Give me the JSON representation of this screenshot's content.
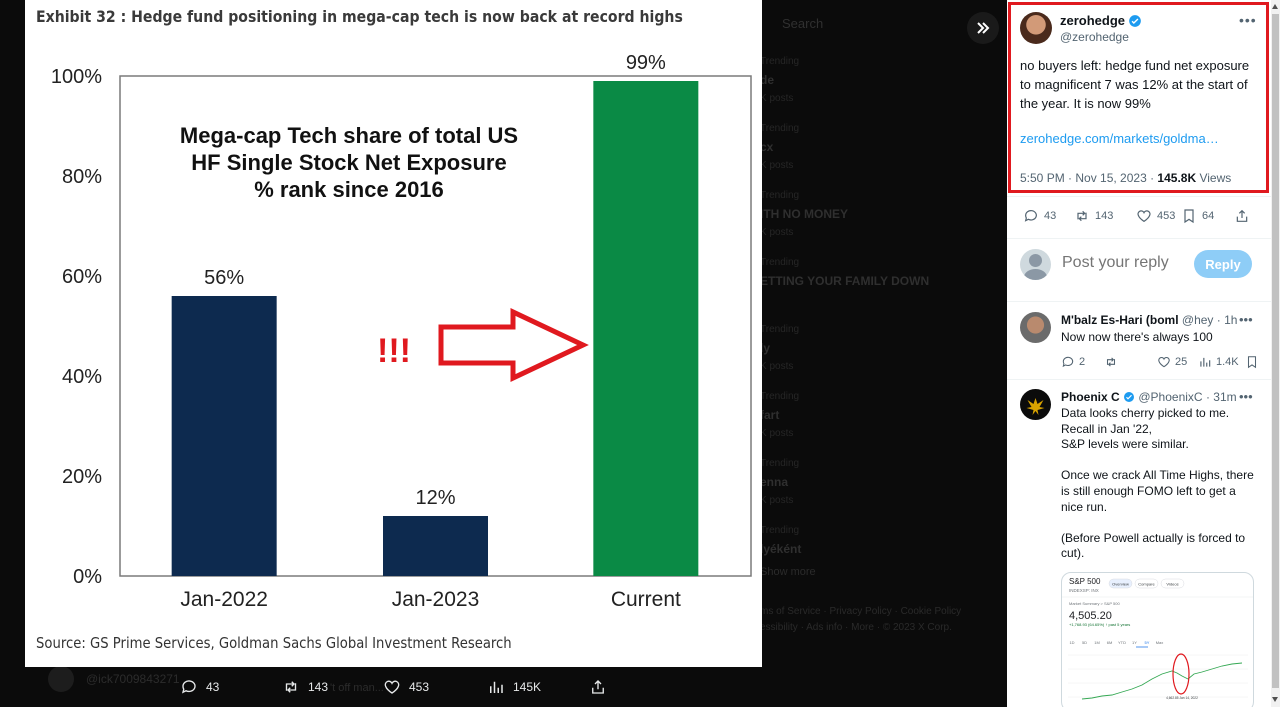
{
  "media": {
    "exhibit_title": "Exhibit 32 : Hedge fund positioning in mega-cap tech is now back at record highs",
    "source": "Source: GS Prime Services, Goldman Sachs Global Investment Research",
    "annotation": "!!!"
  },
  "chart_data": {
    "type": "bar",
    "title": "Mega-cap Tech share of total US\nHF Single Stock Net Exposure\n% rank since 2016",
    "title_lines": [
      "Mega-cap Tech share of total US",
      "HF Single Stock Net Exposure",
      "% rank since 2016"
    ],
    "categories": [
      "Jan-2022",
      "Jan-2023",
      "Current"
    ],
    "values": [
      56,
      12,
      99
    ],
    "value_labels": [
      "56%",
      "12%",
      "99%"
    ],
    "ylim": [
      0,
      100
    ],
    "yticks": [
      "0%",
      "20%",
      "40%",
      "60%",
      "80%",
      "100%"
    ],
    "colors": [
      "#0d2a4f",
      "#0d2a4f",
      "#0a8a45"
    ],
    "grid": false
  },
  "action_bar": {
    "replies": "43",
    "reposts": "143",
    "likes": "453",
    "views": "145K"
  },
  "tweet": {
    "author_name": "zerohedge",
    "author_handle": "@zerohedge",
    "text": "no buyers left: hedge fund net exposure to magnificent 7 was 12% at the start of the year. It is now 99%",
    "link": "zerohedge.com/markets/goldma…",
    "time": "5:50 PM · Nov 15, 2023",
    "separator": " · ",
    "views": "145.8K",
    "views_label": "Views",
    "replies": "43",
    "reposts": "143",
    "likes": "453",
    "bookmarks": "64"
  },
  "reply_box": {
    "placeholder": "Post your reply",
    "button": "Reply"
  },
  "replies": [
    {
      "name": "M'balz Es-Hari (boml",
      "handle": "@hey",
      "time": "· 1h",
      "text": "Now now there's always 100",
      "replies": "2",
      "likes": "25",
      "views": "1.4K"
    },
    {
      "name": "Phoenix C",
      "handle": "@PhoenixC",
      "time": "· 31m",
      "text": "Data looks cherry picked to me.\nRecall in Jan '22,\nS&P levels were similar.\n\nOnce we crack All Time Highs, there is still enough FOMO left to get a nice run.\n\n(Before Powell actually is forced to cut)."
    }
  ],
  "embed": {
    "title": "S&P 500",
    "subtitle": "INDEXSP: INX",
    "tabs": [
      "Overview",
      "Compare",
      "Videos"
    ],
    "summary": "Market Summary > S&P 500",
    "price": "4,505.20",
    "change": "+1,768.93 (64.65%) ↑ past 5 years",
    "ranges": [
      "1D",
      "5D",
      "1M",
      "6M",
      "YTD",
      "1Y",
      "5Y",
      "Max"
    ],
    "point_label": "4,662.85 Jan 14, 2022"
  },
  "background": {
    "search": "Search",
    "trending": [
      {
        "cat": "Trending",
        "title": "de",
        "count": "K posts"
      },
      {
        "cat": "Trending",
        "title": "cx",
        "count": "K posts"
      },
      {
        "cat": "Trending",
        "title": "ITH NO MONEY",
        "count": "K posts"
      },
      {
        "cat": "Trending",
        "title": "ETTING YOUR FAMILY DOWN",
        "count": ""
      },
      {
        "cat": "Trending",
        "title": "ly",
        "count": "K posts"
      },
      {
        "cat": "Trending",
        "title": "fart",
        "count": "K posts"
      },
      {
        "cat": "Trending",
        "title": "enna",
        "count": "K posts"
      },
      {
        "cat": "Trending",
        "title": "lyéként",
        "count": ""
      }
    ],
    "show_more": "Show more",
    "footer_1": "ms of Service · Privacy Policy · Cookie Policy",
    "footer_2": "essibility · Ads info · More · © 2023 X Corp.",
    "user_handle": "@ick7009843271",
    "user_snippet": "'t off man..."
  },
  "colors": {
    "accent": "#1d9bf0",
    "highlight": "#e0191f",
    "bar_navy": "#0d2a4f",
    "bar_green": "#0a8a45"
  }
}
